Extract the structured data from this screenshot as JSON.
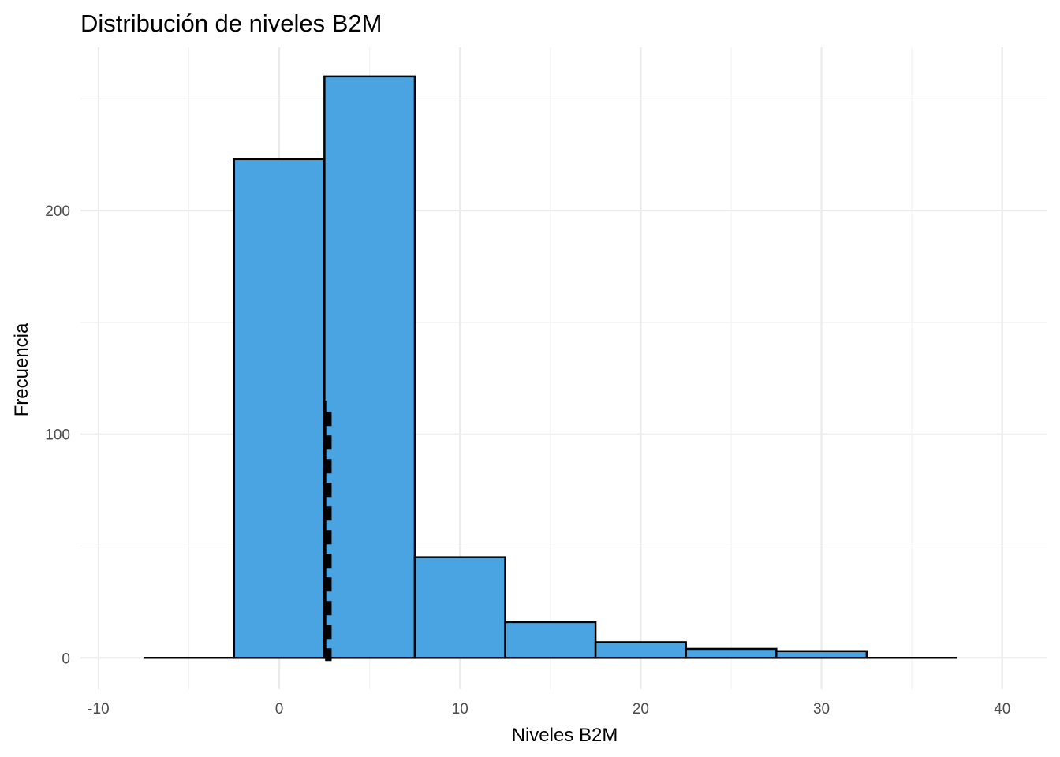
{
  "chart_data": {
    "type": "histogram",
    "title": "Distribución de niveles B2M",
    "xlabel": "Niveles B2M",
    "ylabel": "Frecuencia",
    "xlim": [
      -11,
      42.5
    ],
    "ylim": [
      -14,
      273
    ],
    "x_ticks": [
      -10,
      0,
      10,
      20,
      30,
      40
    ],
    "x_tick_labels": [
      "-10",
      "0",
      "10",
      "20",
      "30",
      "40"
    ],
    "y_ticks": [
      0,
      100,
      200
    ],
    "y_tick_labels": [
      "0",
      "100",
      "200"
    ],
    "bin_width": 5,
    "bins": [
      {
        "start": -7.5,
        "end": -2.5,
        "count": 0
      },
      {
        "start": -2.5,
        "end": 2.5,
        "count": 223
      },
      {
        "start": 2.5,
        "end": 7.5,
        "count": 260
      },
      {
        "start": 7.5,
        "end": 12.5,
        "count": 45
      },
      {
        "start": 12.5,
        "end": 17.5,
        "count": 16
      },
      {
        "start": 17.5,
        "end": 22.5,
        "count": 7
      },
      {
        "start": 22.5,
        "end": 27.5,
        "count": 4
      },
      {
        "start": 27.5,
        "end": 32.5,
        "count": 3
      },
      {
        "start": 32.5,
        "end": 37.5,
        "count": 0
      }
    ],
    "reference_line": {
      "x": 2.7,
      "style": "dashed",
      "color": "#000000"
    },
    "bar_color": "#4aa4e2",
    "bar_outline": "#000000",
    "grid": true,
    "legend": "none"
  }
}
